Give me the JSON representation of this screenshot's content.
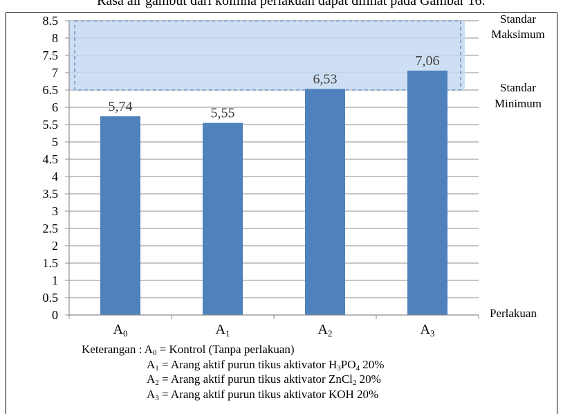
{
  "caption_fragment": "Rasa air gambut dari kolmna perlakuan dapat dilihat pada Gambar 16.",
  "chart_data": {
    "type": "bar",
    "categories": [
      "A0",
      "A1",
      "A2",
      "A3"
    ],
    "category_labels": [
      {
        "base": "A",
        "sub": "0"
      },
      {
        "base": "A",
        "sub": "1"
      },
      {
        "base": "A",
        "sub": "2"
      },
      {
        "base": "A",
        "sub": "3"
      }
    ],
    "values": [
      5.74,
      5.55,
      6.53,
      7.06
    ],
    "value_labels": [
      "5,74",
      "5,55",
      "6,53",
      "7,06"
    ],
    "ylim": [
      0,
      8.5
    ],
    "y_ticks": [
      "0",
      "0.5",
      "1",
      "1.5",
      "2",
      "2.5",
      "3",
      "3.5",
      "4",
      "4.5",
      "5",
      "5.5",
      "6",
      "6.5",
      "7",
      "7.5",
      "8",
      "8.5"
    ],
    "grid": true,
    "xlabel": "Perlakuan",
    "standard_band": {
      "min": 6.5,
      "max": 8.5
    },
    "annotations": {
      "max_label_1": "Standar",
      "max_label_2": "Maksimum",
      "min_label_1": "Standar",
      "min_label_2": "Minimum"
    },
    "colors": {
      "bar": "#4f81bd",
      "band_fill": "#c6d9f1",
      "band_border": "#4f81bd",
      "value_label": "#404040"
    }
  },
  "legend": {
    "intro": "Keterangan : ",
    "rows": [
      [
        {
          "t": "A"
        },
        {
          "s": "0"
        },
        {
          "t": " = Kontrol (Tanpa perlakuan)"
        }
      ],
      [
        {
          "t": "A"
        },
        {
          "s": "1"
        },
        {
          "t": " = Arang aktif purun tikus aktivator H"
        },
        {
          "s": "3"
        },
        {
          "t": "PO"
        },
        {
          "s": "4"
        },
        {
          "t": " 20%"
        }
      ],
      [
        {
          "t": "A"
        },
        {
          "s": "2"
        },
        {
          "t": " = Arang aktif purun tikus aktivator ZnCl"
        },
        {
          "s": "2"
        },
        {
          "t": " 20%"
        }
      ],
      [
        {
          "t": "A"
        },
        {
          "s": "3"
        },
        {
          "t": " = Arang aktif purun tikus aktivator KOH 20%"
        }
      ]
    ]
  }
}
